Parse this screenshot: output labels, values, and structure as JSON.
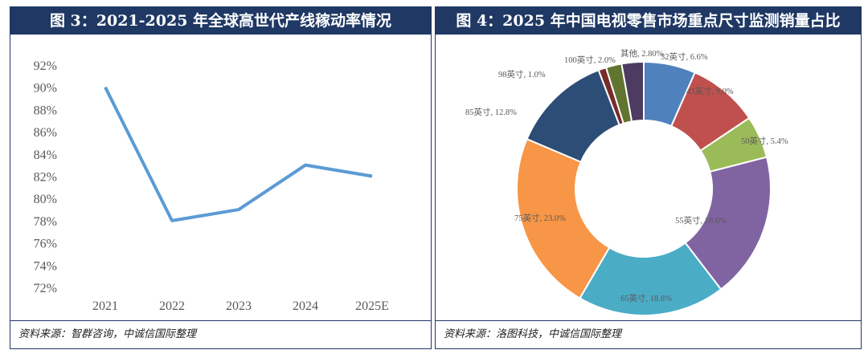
{
  "left": {
    "title": "图 3：2021-2025 年全球高世代产线稼动率情况",
    "source": "资料来源：智群咨询，中诚信国际整理"
  },
  "right": {
    "title": "图 4：2025 年中国电视零售市场重点尺寸监测销量占比",
    "source": "资料来源：洛图科技，中诚信国际整理"
  },
  "chart_data": [
    {
      "type": "line",
      "categories": [
        "2021",
        "2022",
        "2023",
        "2024",
        "2025E"
      ],
      "values": [
        90,
        78,
        79,
        83,
        82
      ],
      "ylim": [
        72,
        92
      ],
      "yticks": [
        "72%",
        "74%",
        "76%",
        "78%",
        "80%",
        "82%",
        "84%",
        "86%",
        "88%",
        "90%",
        "92%"
      ],
      "color": "#5b9bd5",
      "grid": false
    },
    {
      "type": "pie",
      "donut": true,
      "slices": [
        {
          "label": "32英寸, 6.6%",
          "value": 6.6,
          "color": "#4f81bd"
        },
        {
          "label": "43英寸, 9.0%",
          "value": 9.0,
          "color": "#c0504d"
        },
        {
          "label": "50英寸, 5.4%",
          "value": 5.4,
          "color": "#9bbb59"
        },
        {
          "label": "55英寸, 18.6%",
          "value": 18.6,
          "color": "#8064a2"
        },
        {
          "label": "65英寸, 18.8%",
          "value": 18.8,
          "color": "#4bacc6"
        },
        {
          "label": "75英寸, 23.0%",
          "value": 23.0,
          "color": "#f79646"
        },
        {
          "label": "85英寸, 12.8%",
          "value": 12.8,
          "color": "#2c4d75"
        },
        {
          "label": "98英寸, 1.0%",
          "value": 1.0,
          "color": "#772c2a"
        },
        {
          "label": "100英寸, 2.0%",
          "value": 2.0,
          "color": "#5f7530"
        },
        {
          "label": "其他, 2.80%",
          "value": 2.8,
          "color": "#4d3b62"
        }
      ]
    }
  ]
}
